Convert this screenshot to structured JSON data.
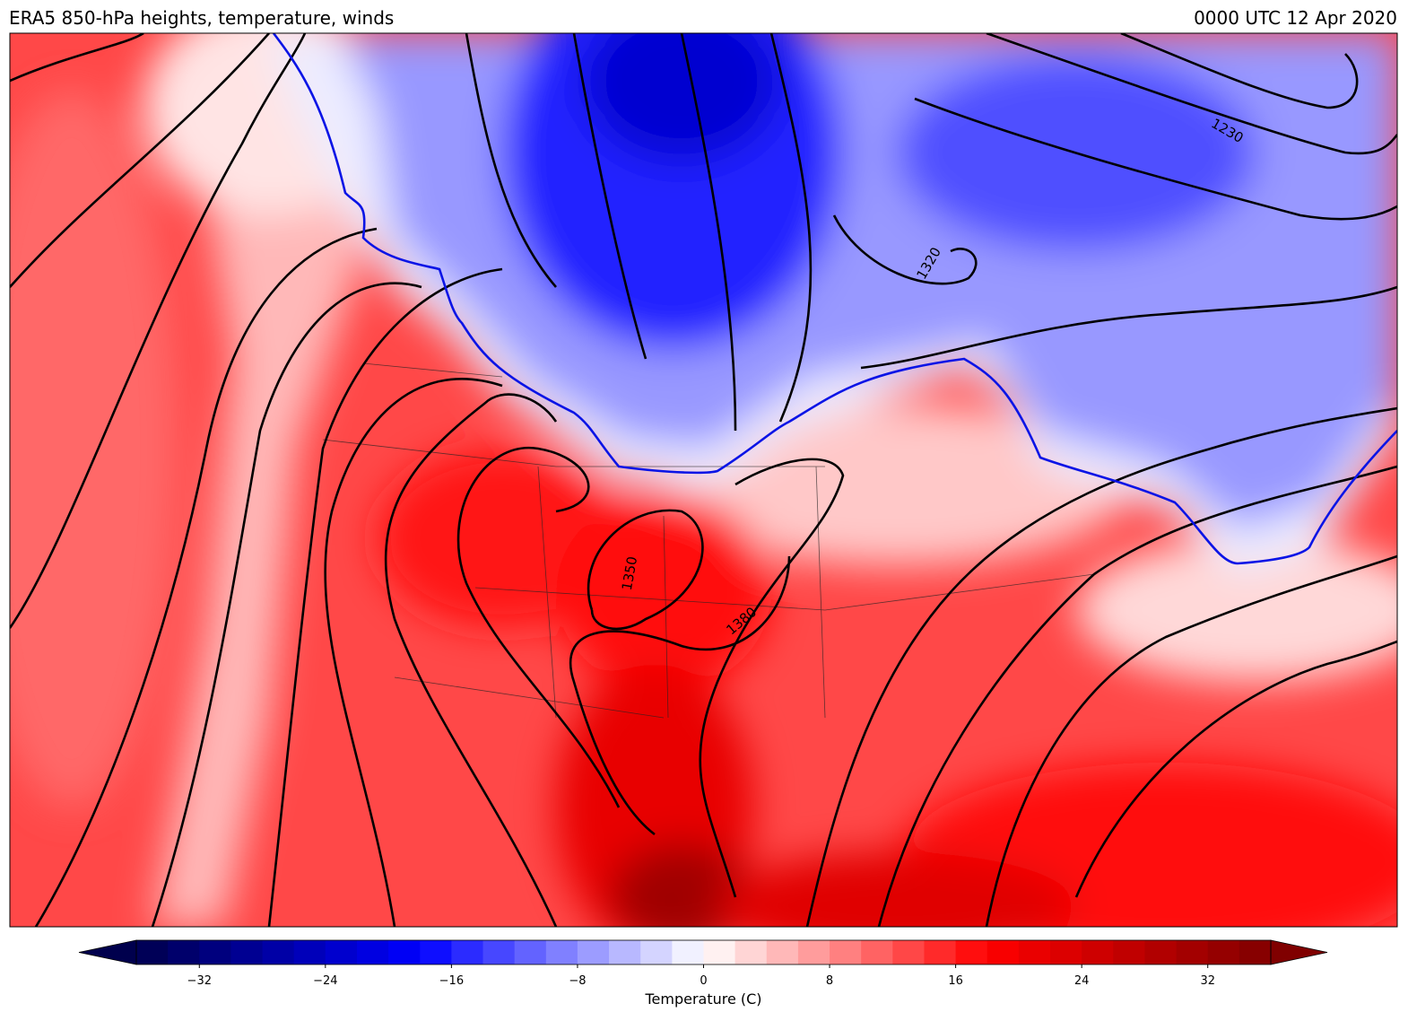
{
  "header": {
    "title_left": "ERA5 850-hPa heights, temperature, winds",
    "title_right": "0000 UTC 12 Apr 2020"
  },
  "map": {
    "contour_labels": [
      "1230",
      "1320",
      "1350",
      "1380"
    ]
  },
  "colorbar": {
    "label": "Temperature (C)",
    "lim": [
      -36,
      36
    ],
    "step": 2,
    "ticks": [
      {
        "value": -32,
        "label": "−32"
      },
      {
        "value": -24,
        "label": "−24"
      },
      {
        "value": -16,
        "label": "−16"
      },
      {
        "value": -8,
        "label": "−8"
      },
      0,
      8,
      16,
      24,
      32
    ]
  }
}
